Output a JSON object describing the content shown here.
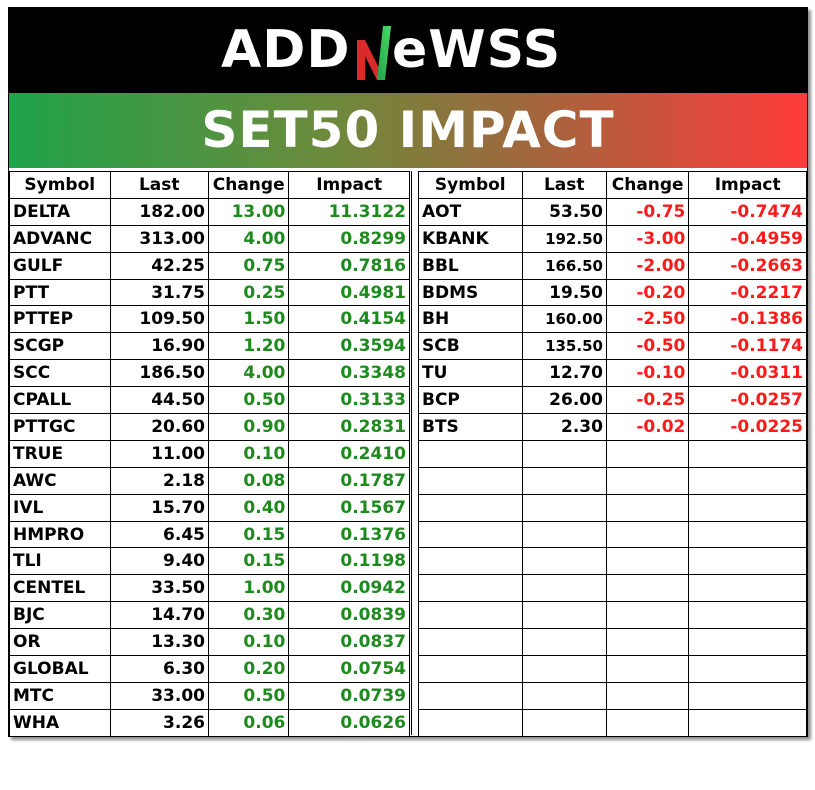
{
  "logo": {
    "left": "ADD",
    "right": "eWSS"
  },
  "banner": {
    "title": "SET50 IMPACT"
  },
  "colors": {
    "gain": "#1d8a1d",
    "loss": "#ff1a1a",
    "banner_start": "#1fa34a",
    "banner_end": "#ff3b3b"
  },
  "headers": {
    "symbol": "Symbol",
    "last": "Last",
    "change": "Change",
    "impact": "Impact"
  },
  "gainers": [
    {
      "symbol": "DELTA",
      "last": "182.00",
      "change": "13.00",
      "impact": "11.3122"
    },
    {
      "symbol": "ADVANC",
      "last": "313.00",
      "change": "4.00",
      "impact": "0.8299"
    },
    {
      "symbol": "GULF",
      "last": "42.25",
      "change": "0.75",
      "impact": "0.7816"
    },
    {
      "symbol": "PTT",
      "last": "31.75",
      "change": "0.25",
      "impact": "0.4981"
    },
    {
      "symbol": "PTTEP",
      "last": "109.50",
      "change": "1.50",
      "impact": "0.4154"
    },
    {
      "symbol": "SCGP",
      "last": "16.90",
      "change": "1.20",
      "impact": "0.3594"
    },
    {
      "symbol": "SCC",
      "last": "186.50",
      "change": "4.00",
      "impact": "0.3348"
    },
    {
      "symbol": "CPALL",
      "last": "44.50",
      "change": "0.50",
      "impact": "0.3133"
    },
    {
      "symbol": "PTTGC",
      "last": "20.60",
      "change": "0.90",
      "impact": "0.2831"
    },
    {
      "symbol": "TRUE",
      "last": "11.00",
      "change": "0.10",
      "impact": "0.2410"
    },
    {
      "symbol": "AWC",
      "last": "2.18",
      "change": "0.08",
      "impact": "0.1787"
    },
    {
      "symbol": "IVL",
      "last": "15.70",
      "change": "0.40",
      "impact": "0.1567"
    },
    {
      "symbol": "HMPRO",
      "last": "6.45",
      "change": "0.15",
      "impact": "0.1376"
    },
    {
      "symbol": "TLI",
      "last": "9.40",
      "change": "0.15",
      "impact": "0.1198"
    },
    {
      "symbol": "CENTEL",
      "last": "33.50",
      "change": "1.00",
      "impact": "0.0942"
    },
    {
      "symbol": "BJC",
      "last": "14.70",
      "change": "0.30",
      "impact": "0.0839"
    },
    {
      "symbol": "OR",
      "last": "13.30",
      "change": "0.10",
      "impact": "0.0837"
    },
    {
      "symbol": "GLOBAL",
      "last": "6.30",
      "change": "0.20",
      "impact": "0.0754"
    },
    {
      "symbol": "MTC",
      "last": "33.00",
      "change": "0.50",
      "impact": "0.0739"
    },
    {
      "symbol": "WHA",
      "last": "3.26",
      "change": "0.06",
      "impact": "0.0626"
    }
  ],
  "losers": [
    {
      "symbol": "AOT",
      "last": "53.50",
      "change": "-0.75",
      "impact": "-0.7474"
    },
    {
      "symbol": "KBANK",
      "last": "192.50",
      "change": "-3.00",
      "impact": "-0.4959"
    },
    {
      "symbol": "BBL",
      "last": "166.50",
      "change": "-2.00",
      "impact": "-0.2663"
    },
    {
      "symbol": "BDMS",
      "last": "19.50",
      "change": "-0.20",
      "impact": "-0.2217"
    },
    {
      "symbol": "BH",
      "last": "160.00",
      "change": "-2.50",
      "impact": "-0.1386"
    },
    {
      "symbol": "SCB",
      "last": "135.50",
      "change": "-0.50",
      "impact": "-0.1174"
    },
    {
      "symbol": "TU",
      "last": "12.70",
      "change": "-0.10",
      "impact": "-0.0311"
    },
    {
      "symbol": "BCP",
      "last": "26.00",
      "change": "-0.25",
      "impact": "-0.0257"
    },
    {
      "symbol": "BTS",
      "last": "2.30",
      "change": "-0.02",
      "impact": "-0.0225"
    },
    {
      "symbol": "",
      "last": "",
      "change": "",
      "impact": ""
    },
    {
      "symbol": "",
      "last": "",
      "change": "",
      "impact": ""
    },
    {
      "symbol": "",
      "last": "",
      "change": "",
      "impact": ""
    },
    {
      "symbol": "",
      "last": "",
      "change": "",
      "impact": ""
    },
    {
      "symbol": "",
      "last": "",
      "change": "",
      "impact": ""
    },
    {
      "symbol": "",
      "last": "",
      "change": "",
      "impact": ""
    },
    {
      "symbol": "",
      "last": "",
      "change": "",
      "impact": ""
    },
    {
      "symbol": "",
      "last": "",
      "change": "",
      "impact": ""
    },
    {
      "symbol": "",
      "last": "",
      "change": "",
      "impact": ""
    },
    {
      "symbol": "",
      "last": "",
      "change": "",
      "impact": ""
    },
    {
      "symbol": "",
      "last": "",
      "change": "",
      "impact": ""
    }
  ]
}
